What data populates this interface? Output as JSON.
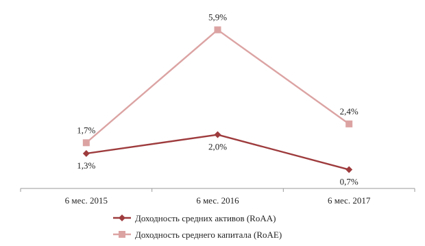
{
  "chart_data": {
    "type": "line",
    "categories": [
      "6 мес. 2015",
      "6 мес. 2016",
      "6 мес. 2017"
    ],
    "series": [
      {
        "name": "Доходность средних активов (RoAA)",
        "values": [
          1.3,
          2.0,
          0.7
        ],
        "labels": [
          "1,3%",
          "2,0%",
          "0,7%"
        ],
        "color": "#9e3b3d",
        "marker": "diamond"
      },
      {
        "name": "Доходность среднего капитала (RoAE)",
        "values": [
          1.7,
          5.9,
          2.4
        ],
        "labels": [
          "1,7%",
          "5,9%",
          "2,4%"
        ],
        "color": "#dca3a3",
        "marker": "square"
      }
    ],
    "ylim": [
      0,
      6.5
    ],
    "grid": false,
    "legend": "bottom"
  }
}
